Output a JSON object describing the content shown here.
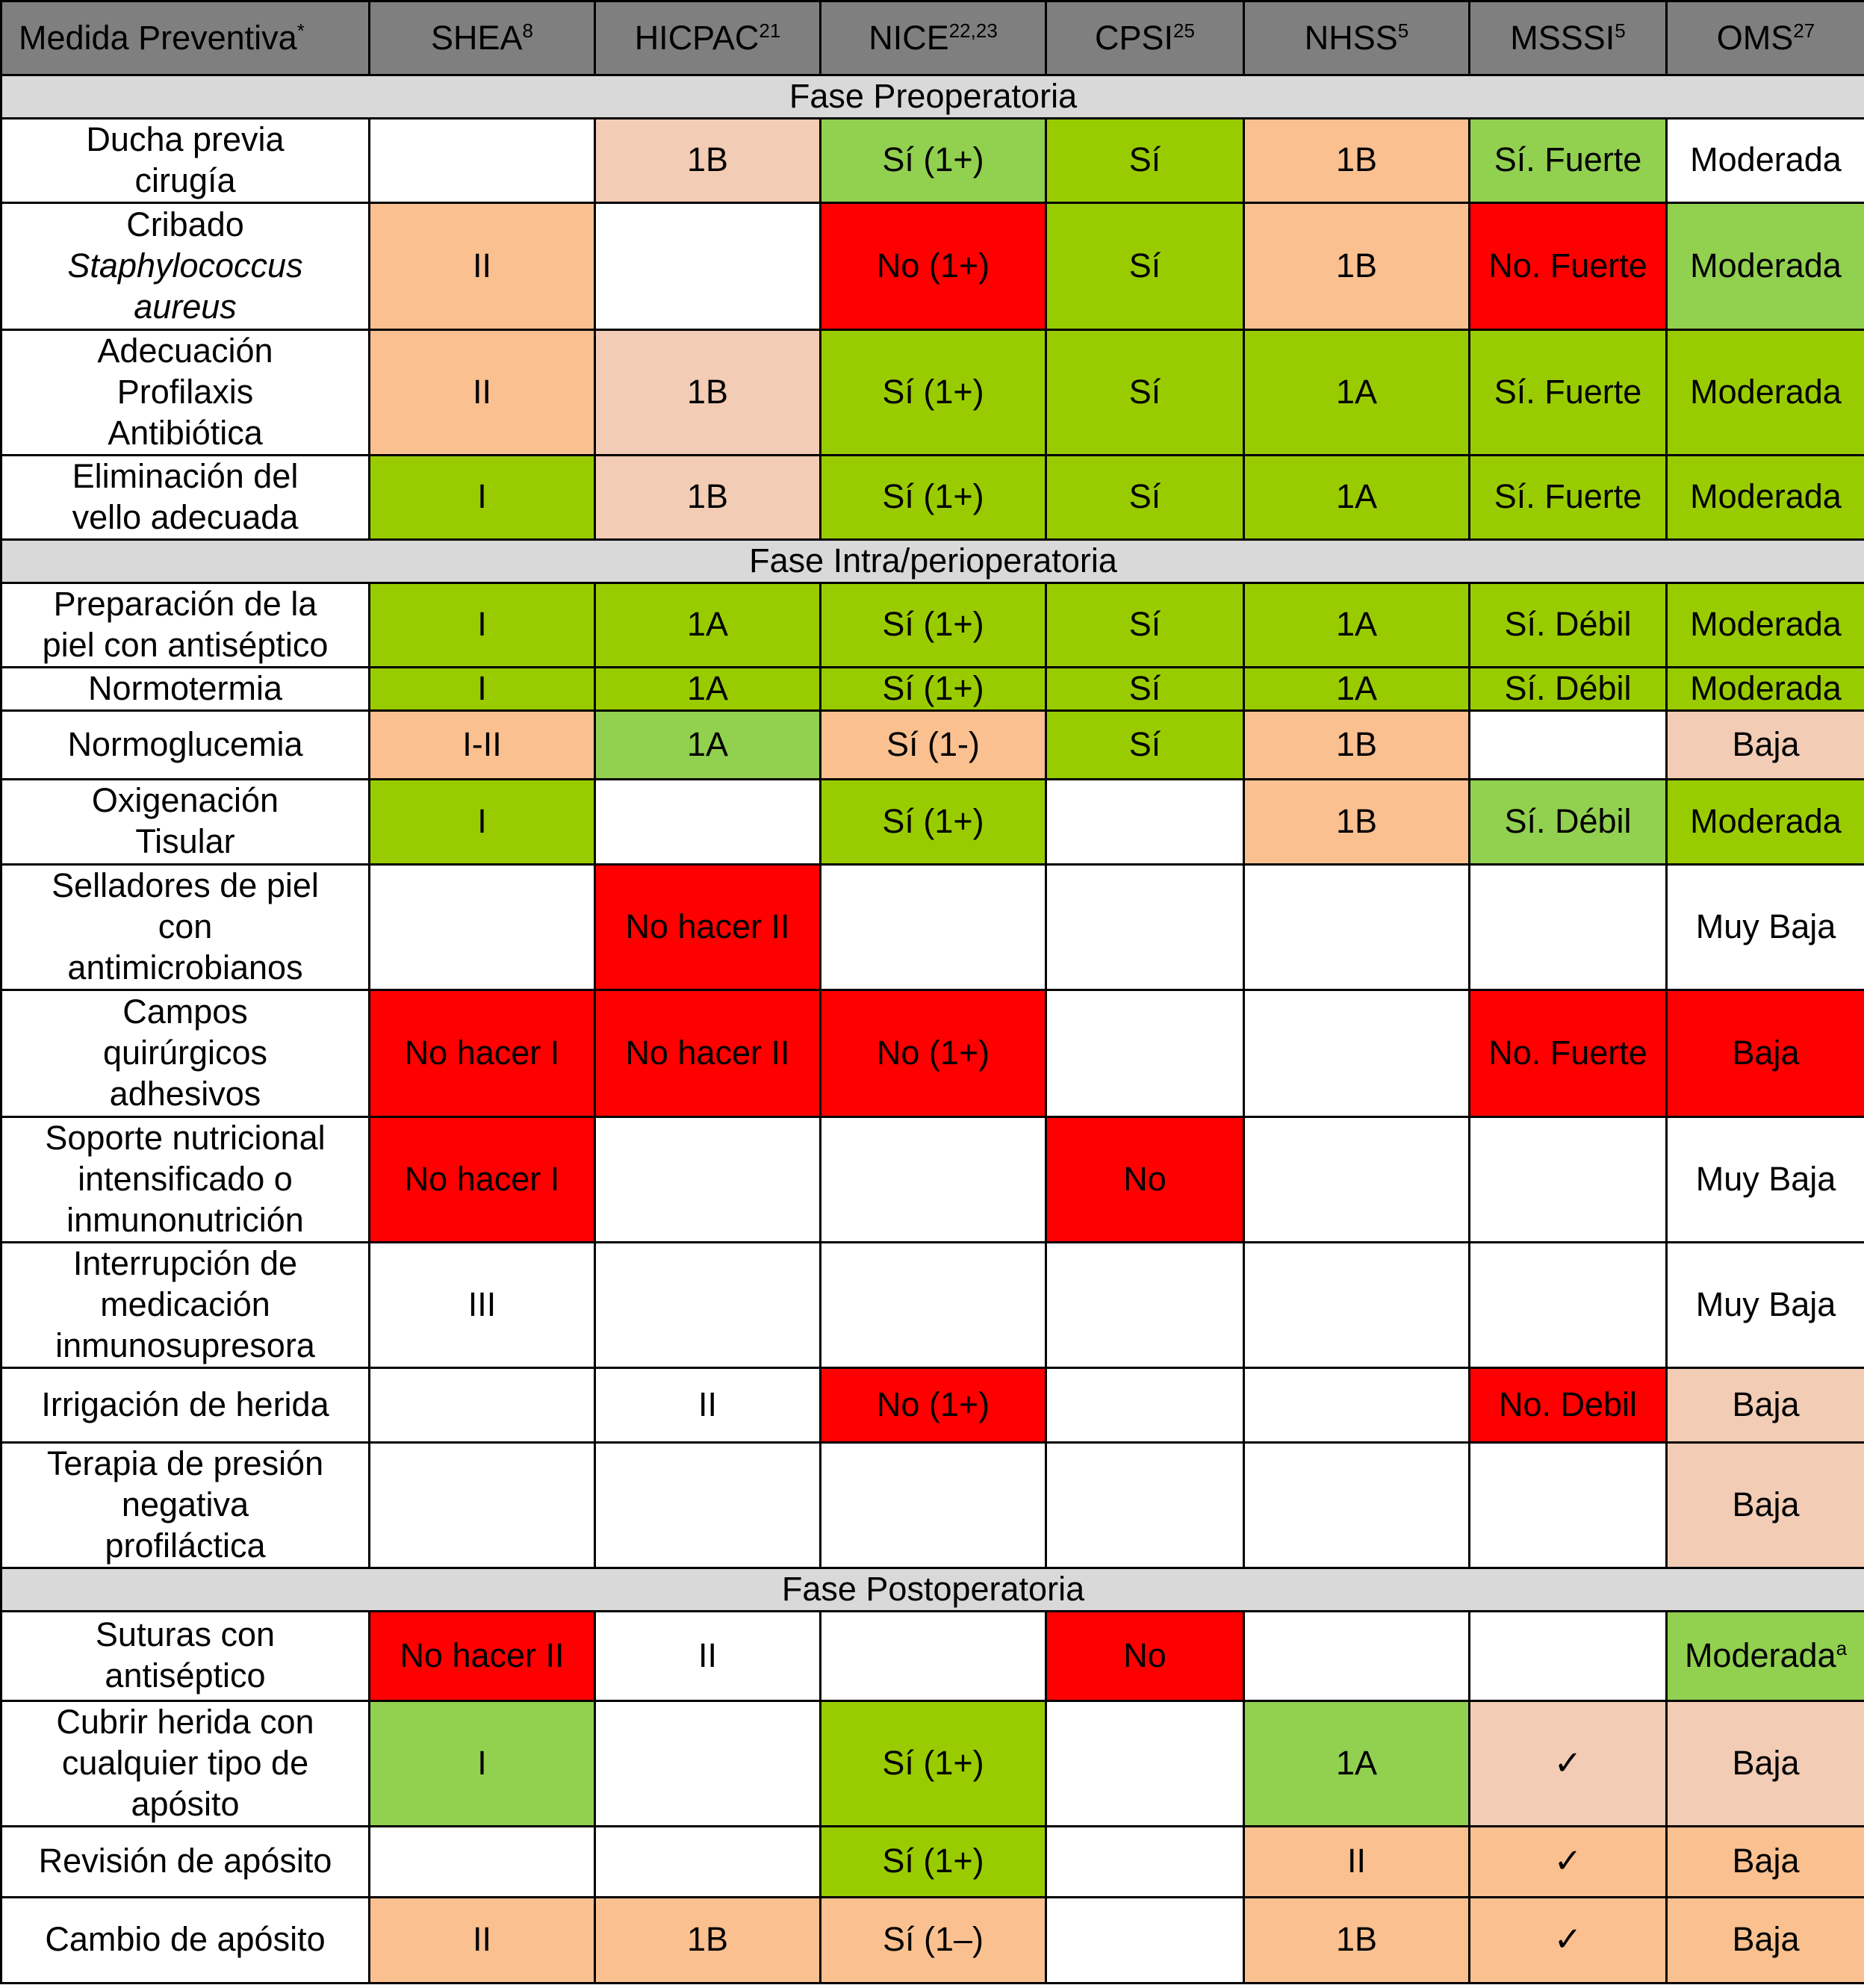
{
  "colors": {
    "header": "#7f7f7f",
    "phase": "#d9d9d9",
    "G": "#99cc00",
    "L": "#92d050",
    "O": "#fac090",
    "P": "#f2ccb4",
    "R": "#ff0000",
    "W": "#ffffff"
  },
  "headers": [
    {
      "text": "Medida Preventiva",
      "sup": "*"
    },
    {
      "text": "SHEA",
      "sup": "8"
    },
    {
      "text": "HICPAC",
      "sup": "21"
    },
    {
      "text": "NICE",
      "sup": "22,23"
    },
    {
      "text": "CPSI",
      "sup": "25"
    },
    {
      "text": "NHSS",
      "sup": "5"
    },
    {
      "text": "MSSSI",
      "sup": "5"
    },
    {
      "text": "OMS",
      "sup": "27"
    }
  ],
  "sections": [
    {
      "title": "Fase Preoperatoria",
      "rows": [
        {
          "h": 110,
          "label": [
            "Ducha previa",
            "cirugía"
          ],
          "cells": [
            [
              "",
              "W"
            ],
            [
              "1B",
              "P"
            ],
            [
              "Sí (1+)",
              "L"
            ],
            [
              "Sí",
              "G"
            ],
            [
              "1B",
              "O"
            ],
            [
              "Sí. Fuerte",
              "L"
            ],
            [
              "Moderada",
              "W"
            ]
          ]
        },
        {
          "h": 170,
          "label": [
            "Cribado",
            "Staphylococcus",
            "aureus"
          ],
          "italic": [
            1,
            2
          ],
          "cells": [
            [
              "II",
              "O"
            ],
            [
              "",
              "W"
            ],
            [
              "No (1+)",
              "R"
            ],
            [
              "Sí",
              "G"
            ],
            [
              "1B",
              "O"
            ],
            [
              "No. Fuerte",
              "R"
            ],
            [
              "Moderada",
              "L"
            ]
          ]
        },
        {
          "h": 168,
          "label": [
            "Adecuación",
            "Profilaxis",
            "Antibiótica"
          ],
          "cells": [
            [
              "II",
              "O"
            ],
            [
              "1B",
              "P"
            ],
            [
              "Sí (1+)",
              "G"
            ],
            [
              "Sí",
              "G"
            ],
            [
              "1A",
              "G"
            ],
            [
              "Sí. Fuerte",
              "G"
            ],
            [
              "Moderada",
              "G"
            ]
          ]
        },
        {
          "h": 113,
          "label": [
            "Eliminación del",
            "vello adecuada"
          ],
          "cells": [
            [
              "I",
              "G"
            ],
            [
              "1B",
              "P"
            ],
            [
              "Sí (1+)",
              "G"
            ],
            [
              "Sí",
              "G"
            ],
            [
              "1A",
              "G"
            ],
            [
              "Sí. Fuerte",
              "G"
            ],
            [
              "Moderada",
              "G"
            ]
          ]
        }
      ]
    },
    {
      "title": "Fase Intra/perioperatoria",
      "rows": [
        {
          "h": 113,
          "label": [
            "Preparación de la",
            "piel con antiséptico"
          ],
          "cells": [
            [
              "I",
              "G"
            ],
            [
              "1A",
              "G"
            ],
            [
              "Sí (1+)",
              "G"
            ],
            [
              "Sí",
              "G"
            ],
            [
              "1A",
              "G"
            ],
            [
              "Sí. Débil",
              "G"
            ],
            [
              "Moderada",
              "G"
            ]
          ]
        },
        {
          "h": 58,
          "label": [
            "Normotermia"
          ],
          "cells": [
            [
              "I",
              "G"
            ],
            [
              "1A",
              "G"
            ],
            [
              "Sí (1+)",
              "G"
            ],
            [
              "Sí",
              "G"
            ],
            [
              "1A",
              "G"
            ],
            [
              "Sí. Débil",
              "G"
            ],
            [
              "Moderada",
              "G"
            ]
          ]
        },
        {
          "h": 92,
          "label": [
            "Normoglucemia"
          ],
          "cells": [
            [
              "I-II",
              "O"
            ],
            [
              "1A",
              "L"
            ],
            [
              "Sí (1-)",
              "O"
            ],
            [
              "Sí",
              "G"
            ],
            [
              "1B",
              "O"
            ],
            [
              "",
              "W"
            ],
            [
              "Baja",
              "P"
            ]
          ]
        },
        {
          "h": 114,
          "label": [
            "Oxigenación",
            "Tisular"
          ],
          "cells": [
            [
              "I",
              "G"
            ],
            [
              "",
              "W"
            ],
            [
              "Sí (1+)",
              "G"
            ],
            [
              "",
              "W"
            ],
            [
              "1B",
              "O"
            ],
            [
              "Sí. Débil",
              "L"
            ],
            [
              "Moderada",
              "G"
            ]
          ]
        },
        {
          "h": 168,
          "label": [
            "Selladores de piel",
            "con",
            "antimicrobianos"
          ],
          "cells": [
            [
              "",
              "W"
            ],
            [
              "No hacer II",
              "R"
            ],
            [
              "",
              "W"
            ],
            [
              "",
              "W"
            ],
            [
              "",
              "W"
            ],
            [
              "",
              "W"
            ],
            [
              "Muy Baja",
              "W"
            ]
          ]
        },
        {
          "h": 170,
          "label": [
            "Campos",
            "quirúrgicos",
            "adhesivos"
          ],
          "cells": [
            [
              "No hacer I",
              "R"
            ],
            [
              "No hacer II",
              "R"
            ],
            [
              "No (1+)",
              "R"
            ],
            [
              "",
              "W"
            ],
            [
              "",
              "W"
            ],
            [
              "No. Fuerte",
              "R"
            ],
            [
              "Baja",
              "R"
            ]
          ]
        },
        {
          "h": 168,
          "label": [
            "Soporte nutricional",
            "intensificado o",
            "inmunonutrición"
          ],
          "cells": [
            [
              "No hacer I",
              "R"
            ],
            [
              "",
              "W"
            ],
            [
              "",
              "W"
            ],
            [
              "No",
              "R"
            ],
            [
              "",
              "W"
            ],
            [
              "",
              "W"
            ],
            [
              "Muy Baja",
              "W"
            ]
          ]
        },
        {
          "h": 168,
          "label": [
            "Interrupción de",
            "medicación",
            "inmunosupresora"
          ],
          "cells": [
            [
              "III",
              "W"
            ],
            [
              "",
              "W"
            ],
            [
              "",
              "W"
            ],
            [
              "",
              "W"
            ],
            [
              "",
              "W"
            ],
            [
              "",
              "W"
            ],
            [
              "Muy Baja",
              "W"
            ]
          ]
        },
        {
          "h": 100,
          "label": [
            "Irrigación de herida"
          ],
          "cells": [
            [
              "",
              "W"
            ],
            [
              "II",
              "W"
            ],
            [
              "No (1+)",
              "R"
            ],
            [
              "",
              "W"
            ],
            [
              "",
              "W"
            ],
            [
              "No. Debil",
              "R"
            ],
            [
              "Baja",
              "P"
            ]
          ]
        },
        {
          "h": 168,
          "label": [
            "Terapia de presión",
            "negativa",
            "profiláctica"
          ],
          "cells": [
            [
              "",
              "W"
            ],
            [
              "",
              "W"
            ],
            [
              "",
              "W"
            ],
            [
              "",
              "W"
            ],
            [
              "",
              "W"
            ],
            [
              "",
              "W"
            ],
            [
              "Baja",
              "P"
            ]
          ]
        }
      ]
    },
    {
      "title": "Fase Postoperatoria",
      "rows": [
        {
          "h": 120,
          "label": [
            "Suturas con",
            "antiséptico"
          ],
          "cells": [
            [
              "No hacer II",
              "R"
            ],
            [
              "II",
              "W"
            ],
            [
              "",
              "W"
            ],
            [
              "No",
              "R"
            ],
            [
              "",
              "W"
            ],
            [
              "",
              "W"
            ],
            [
              "Moderada",
              "L"
            ]
          ],
          "last_sup": "a"
        },
        {
          "h": 168,
          "label": [
            "Cubrir herida con",
            "cualquier tipo de",
            "apósito"
          ],
          "cells": [
            [
              "I",
              "L"
            ],
            [
              "",
              "W"
            ],
            [
              "Sí (1+)",
              "G"
            ],
            [
              "",
              "W"
            ],
            [
              "1A",
              "L"
            ],
            [
              "✓",
              "P"
            ],
            [
              "Baja",
              "P"
            ]
          ]
        },
        {
          "h": 95,
          "label": [
            "Revisión de apósito"
          ],
          "cells": [
            [
              "",
              "W"
            ],
            [
              "",
              "W"
            ],
            [
              "Sí (1+)",
              "G"
            ],
            [
              "",
              "W"
            ],
            [
              "II",
              "O"
            ],
            [
              "✓",
              "O"
            ],
            [
              "Baja",
              "O"
            ]
          ]
        },
        {
          "h": 115,
          "label": [
            "Cambio de apósito"
          ],
          "cells": [
            [
              "II",
              "O"
            ],
            [
              "1B",
              "O"
            ],
            [
              "Sí (1–)",
              "O"
            ],
            [
              "",
              "W"
            ],
            [
              "1B",
              "O"
            ],
            [
              "✓",
              "O"
            ],
            [
              "Baja",
              "O"
            ]
          ]
        }
      ]
    }
  ]
}
